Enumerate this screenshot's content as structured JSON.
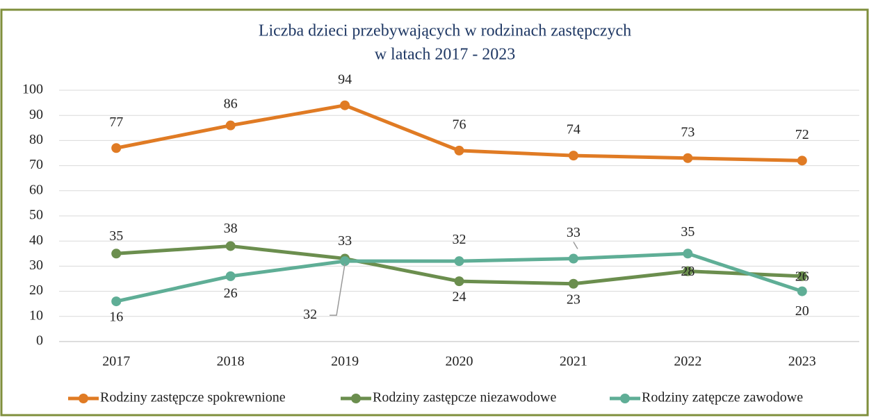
{
  "chart_data": {
    "type": "line",
    "title": "Liczba dzieci przebywających w rodzinach zastępczych",
    "subtitle": "w latach 2017 - 2023",
    "categories": [
      "2017",
      "2018",
      "2019",
      "2020",
      "2021",
      "2022",
      "2023"
    ],
    "series": [
      {
        "name": "Rodziny zastępcze spokrewnione",
        "color": "#e07b24",
        "values": [
          77,
          86,
          94,
          76,
          74,
          73,
          72
        ]
      },
      {
        "name": "Rodziny zastępcze niezawodowe",
        "color": "#6b8e4e",
        "values": [
          35,
          38,
          33,
          24,
          23,
          28,
          26
        ]
      },
      {
        "name": "Rodziny zatępcze zawodowe",
        "color": "#5fae96",
        "values": [
          16,
          26,
          32,
          32,
          33,
          35,
          20
        ]
      }
    ],
    "ylim": [
      0,
      100
    ],
    "yticks": [
      0,
      10,
      20,
      30,
      40,
      50,
      60,
      70,
      80,
      90,
      100
    ],
    "grid": true,
    "legend": "bottom"
  }
}
